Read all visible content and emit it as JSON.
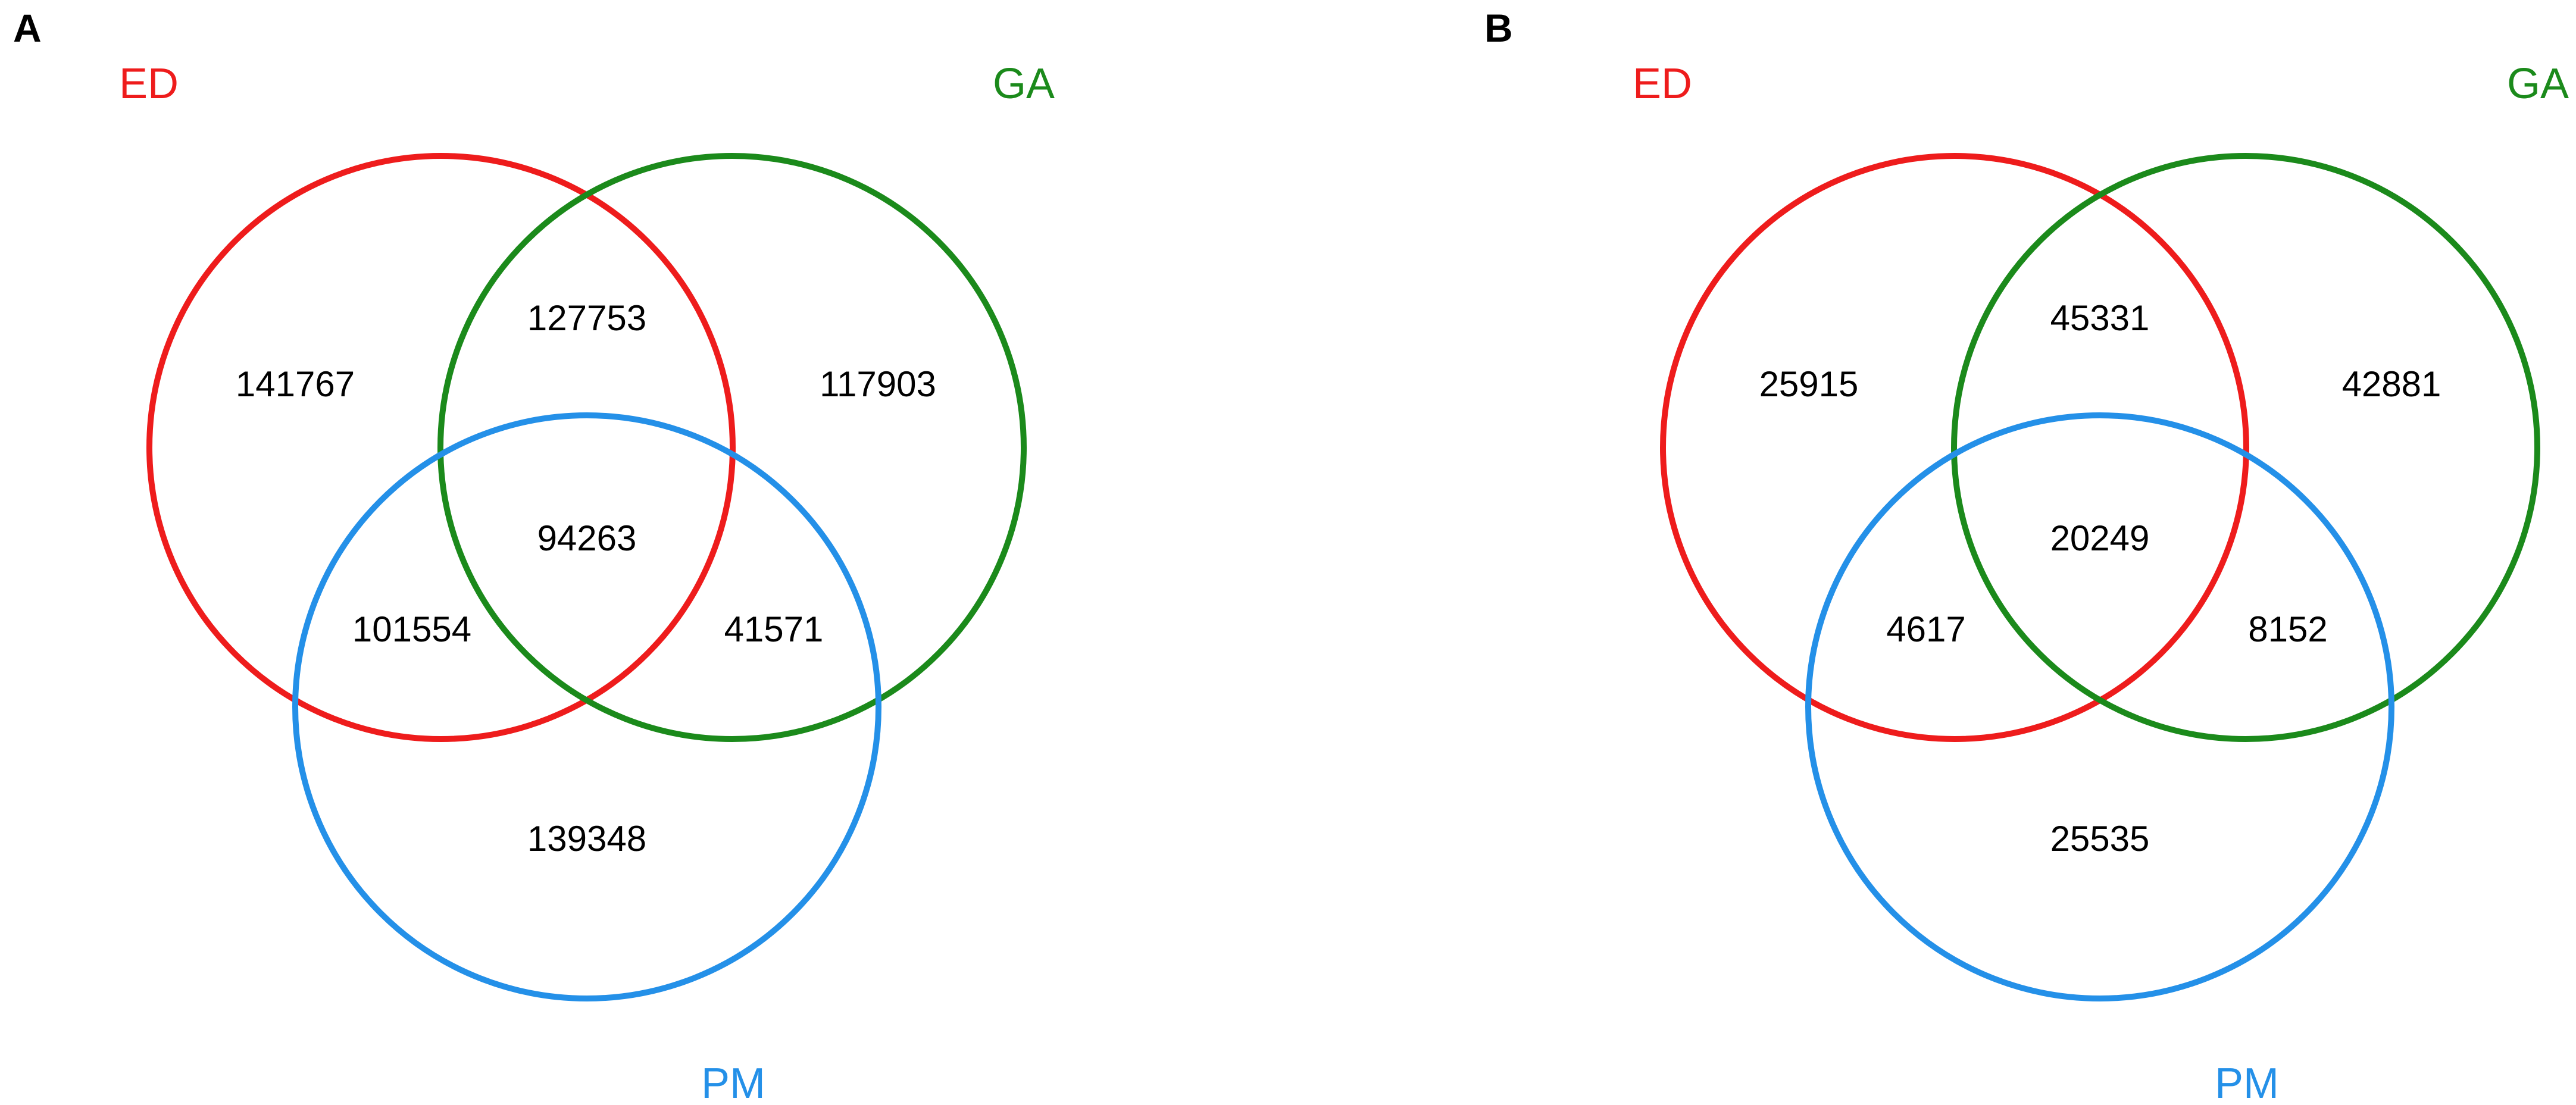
{
  "colors": {
    "ED": "#ee1c1c",
    "GA": "#1b8a1b",
    "PM": "#2490e8"
  },
  "panels": [
    {
      "letter": "A",
      "sets": {
        "ED": "ED",
        "GA": "GA",
        "PM": "PM"
      },
      "regions": {
        "ED_only": "141767",
        "ED_GA": "127753",
        "GA_only": "117903",
        "ED_GA_PM": "94263",
        "ED_PM": "101554",
        "GA_PM": "41571",
        "PM_only": "139348"
      }
    },
    {
      "letter": "B",
      "sets": {
        "ED": "ED",
        "GA": "GA",
        "PM": "PM"
      },
      "regions": {
        "ED_only": "25915",
        "ED_GA": "45331",
        "GA_only": "42881",
        "ED_GA_PM": "20249",
        "ED_PM": "4617",
        "GA_PM": "8152",
        "PM_only": "25535"
      }
    }
  ]
}
